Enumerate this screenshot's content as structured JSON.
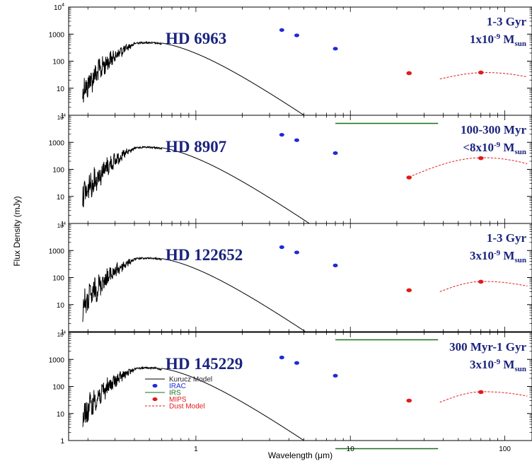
{
  "chart_data": {
    "type": "line",
    "xlabel": "Wavelength (μm)",
    "ylabel": "Flux Density (mJy)",
    "x_scale": "log",
    "y_scale": "log",
    "xlim": [
      0.15,
      150
    ],
    "ylim": [
      1,
      10000
    ],
    "x_ticks": [
      "1",
      "10",
      "100"
    ],
    "y_ticks": [
      "1",
      "10",
      "100",
      "1000"
    ],
    "y_top_tick": {
      "base": "10",
      "exp": "4"
    },
    "legend": {
      "placement": "lower-left of bottom panel",
      "entries": [
        {
          "label": "Kurucz Model",
          "color": "#000000",
          "style": "line"
        },
        {
          "label": "IRAC",
          "color": "#1f2bd6",
          "style": "dot"
        },
        {
          "label": "IRS",
          "color": "#1b6e1b",
          "style": "line"
        },
        {
          "label": "MIPS",
          "color": "#e01b1b",
          "style": "dot"
        },
        {
          "label": "Dust Model",
          "color": "#e01b1b",
          "style": "dashed"
        }
      ]
    },
    "panels": [
      {
        "star": "HD 6963",
        "age": "1-3 Gyr",
        "mass": {
          "prefix": "1x10",
          "exp": "-9",
          "unit": "M",
          "sub": "sun"
        },
        "peak_flux": 520,
        "irac": [
          [
            3.6,
            1420
          ],
          [
            4.5,
            900
          ],
          [
            8.0,
            290
          ]
        ],
        "mips": [
          [
            24,
            36
          ],
          [
            70,
            38
          ]
        ],
        "irs_range": [
          8,
          37
        ],
        "irs_spikes": true,
        "dust": {
          "start": [
            38,
            22
          ],
          "peak": [
            75,
            38
          ],
          "end": [
            140,
            26
          ]
        }
      },
      {
        "star": "HD 8907",
        "age": "100-300 Myr",
        "mass": {
          "prefix": "<8x10",
          "exp": "-9",
          "unit": "M",
          "sub": "sun"
        },
        "peak_flux": 700,
        "irac": [
          [
            3.6,
            1900
          ],
          [
            4.5,
            1200
          ],
          [
            8.0,
            400
          ]
        ],
        "mips": [
          [
            24,
            50
          ],
          [
            70,
            260
          ]
        ],
        "irs_range": null,
        "irs_spikes": false,
        "dust": {
          "start": [
            24,
            52
          ],
          "peak": [
            72,
            270
          ],
          "end": [
            140,
            160
          ]
        }
      },
      {
        "star": "HD 122652",
        "age": "1-3 Gyr",
        "mass": {
          "prefix": "3x10",
          "exp": "-9",
          "unit": "M",
          "sub": "sun"
        },
        "peak_flux": 560,
        "irac": [
          [
            3.6,
            1330
          ],
          [
            4.5,
            850
          ],
          [
            8.0,
            280
          ]
        ],
        "mips": [
          [
            24,
            34
          ],
          [
            70,
            70
          ]
        ],
        "irs_range": [
          8,
          37
        ],
        "irs_spikes": true,
        "dust": {
          "start": [
            38,
            30
          ],
          "peak": [
            72,
            72
          ],
          "end": [
            140,
            48
          ]
        }
      },
      {
        "star": "HD 145229",
        "age": "300 Myr-1 Gyr",
        "mass": {
          "prefix": "3x10",
          "exp": "-9",
          "unit": "M",
          "sub": "sun"
        },
        "peak_flux": 520,
        "irac": [
          [
            3.6,
            1180
          ],
          [
            4.5,
            740
          ],
          [
            8.0,
            250
          ]
        ],
        "mips": [
          [
            24,
            30
          ],
          [
            70,
            62
          ]
        ],
        "irs_range": [
          8,
          37
        ],
        "irs_spikes": true,
        "dust": {
          "start": [
            38,
            26
          ],
          "peak": [
            72,
            64
          ],
          "end": [
            140,
            44
          ]
        }
      }
    ]
  }
}
